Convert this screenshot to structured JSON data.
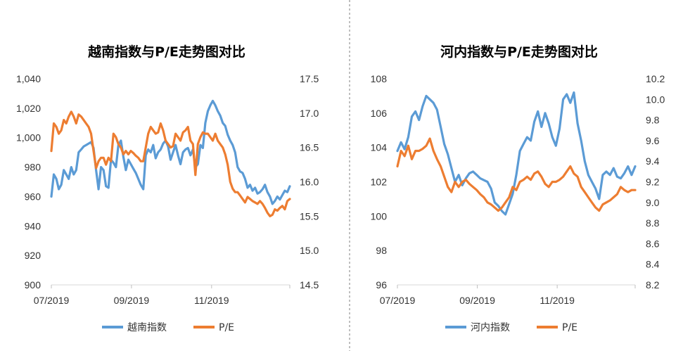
{
  "chart_data": [
    {
      "type": "line",
      "title": "越南指数与P/E走势图对比",
      "x_ticks": [
        "07/2019",
        "09/2019",
        "11/2019"
      ],
      "y_left": {
        "min": 900,
        "max": 1040,
        "ticks": [
          "900",
          "920",
          "940",
          "960",
          "980",
          "1,000",
          "1,020",
          "1,040"
        ]
      },
      "y_right": {
        "min": 14.5,
        "max": 17.5,
        "ticks": [
          "14.5",
          "15.0",
          "15.5",
          "16.0",
          "16.5",
          "17.0",
          "17.5"
        ]
      },
      "legend": [
        "越南指数",
        "P/E"
      ],
      "colors": [
        "#5b9bd5",
        "#ed7d31"
      ],
      "series": [
        {
          "name": "越南指数",
          "axis": "left",
          "values": [
            960,
            975,
            972,
            965,
            968,
            978,
            975,
            972,
            980,
            975,
            978,
            990,
            992,
            994,
            995,
            996,
            997,
            993,
            978,
            965,
            980,
            978,
            967,
            966,
            985,
            983,
            980,
            995,
            998,
            987,
            978,
            985,
            982,
            979,
            976,
            972,
            968,
            965,
            988,
            992,
            990,
            995,
            986,
            990,
            992,
            996,
            998,
            994,
            985,
            990,
            995,
            988,
            982,
            990,
            992,
            993,
            988,
            992,
            980,
            982,
            995,
            993,
            1010,
            1018,
            1022,
            1025,
            1022,
            1018,
            1015,
            1010,
            1008,
            1002,
            998,
            995,
            990,
            980,
            977,
            976,
            972,
            966,
            968,
            964,
            966,
            962,
            963,
            965,
            968,
            963,
            960,
            955,
            957,
            960,
            958,
            961,
            964,
            963,
            967
          ]
        },
        {
          "name": "P/E",
          "axis": "right",
          "values": [
            16.45,
            16.85,
            16.8,
            16.7,
            16.75,
            16.9,
            16.85,
            16.95,
            17.02,
            16.95,
            16.85,
            16.98,
            16.95,
            16.9,
            16.85,
            16.8,
            16.7,
            16.45,
            16.2,
            16.3,
            16.35,
            16.35,
            16.25,
            16.35,
            16.3,
            16.7,
            16.65,
            16.55,
            16.5,
            16.4,
            16.45,
            16.4,
            16.45,
            16.42,
            16.38,
            16.35,
            16.3,
            16.3,
            16.5,
            16.7,
            16.8,
            16.75,
            16.7,
            16.72,
            16.85,
            16.75,
            16.6,
            16.55,
            16.5,
            16.52,
            16.7,
            16.65,
            16.6,
            16.72,
            16.75,
            16.8,
            16.6,
            16.55,
            16.1,
            16.55,
            16.65,
            16.72,
            16.7,
            16.7,
            16.65,
            16.6,
            16.7,
            16.6,
            16.55,
            16.5,
            16.4,
            16.25,
            16.0,
            15.9,
            15.85,
            15.85,
            15.8,
            15.75,
            15.7,
            15.78,
            15.75,
            15.72,
            15.7,
            15.68,
            15.72,
            15.68,
            15.62,
            15.55,
            15.5,
            15.52,
            15.6,
            15.58,
            15.62,
            15.65,
            15.6,
            15.72,
            15.75
          ]
        }
      ]
    },
    {
      "type": "line",
      "title": "河内指数与P/E走势图对比",
      "x_ticks": [
        "07/2019",
        "09/2019",
        "11/2019"
      ],
      "y_left": {
        "min": 96,
        "max": 108,
        "ticks": [
          "96",
          "98",
          "100",
          "102",
          "104",
          "106",
          "108"
        ]
      },
      "y_right": {
        "min": 8.2,
        "max": 10.2,
        "ticks": [
          "8.2",
          "8.4",
          "8.6",
          "8.8",
          "9.0",
          "9.2",
          "9.4",
          "9.6",
          "9.8",
          "10.0",
          "10.2"
        ]
      },
      "legend": [
        "河内指数",
        "P/E"
      ],
      "colors": [
        "#5b9bd5",
        "#ed7d31"
      ],
      "series": [
        {
          "name": "河内指数",
          "axis": "left",
          "values": [
            103.8,
            104.3,
            103.9,
            104.6,
            105.8,
            106.1,
            105.6,
            106.4,
            107.0,
            106.8,
            106.6,
            106.2,
            105.2,
            104.2,
            103.6,
            102.8,
            102.0,
            102.4,
            101.8,
            102.2,
            102.5,
            102.6,
            102.4,
            102.2,
            102.1,
            102.0,
            101.6,
            100.8,
            100.6,
            100.3,
            100.1,
            100.7,
            101.3,
            102.4,
            103.8,
            104.2,
            104.6,
            104.4,
            105.5,
            106.1,
            105.2,
            106.0,
            105.4,
            104.6,
            104.1,
            105.1,
            106.8,
            107.1,
            106.6,
            107.2,
            105.4,
            104.4,
            103.2,
            102.4,
            102.0,
            101.6,
            101.0,
            102.4,
            102.6,
            102.4,
            102.8,
            102.3,
            102.2,
            102.5,
            102.9,
            102.4,
            102.9
          ]
        },
        {
          "name": "P/E",
          "axis": "right",
          "values": [
            9.35,
            9.5,
            9.45,
            9.55,
            9.42,
            9.5,
            9.5,
            9.52,
            9.55,
            9.62,
            9.5,
            9.42,
            9.35,
            9.25,
            9.15,
            9.1,
            9.2,
            9.15,
            9.2,
            9.22,
            9.18,
            9.15,
            9.12,
            9.08,
            9.05,
            9.0,
            8.98,
            8.95,
            8.92,
            8.95,
            9.0,
            9.05,
            9.15,
            9.12,
            9.2,
            9.22,
            9.25,
            9.22,
            9.28,
            9.3,
            9.25,
            9.18,
            9.15,
            9.2,
            9.2,
            9.22,
            9.25,
            9.3,
            9.35,
            9.28,
            9.25,
            9.15,
            9.1,
            9.05,
            9.0,
            8.95,
            8.92,
            8.98,
            9.0,
            9.02,
            9.05,
            9.08,
            9.15,
            9.12,
            9.1,
            9.12,
            9.12
          ]
        }
      ]
    }
  ]
}
